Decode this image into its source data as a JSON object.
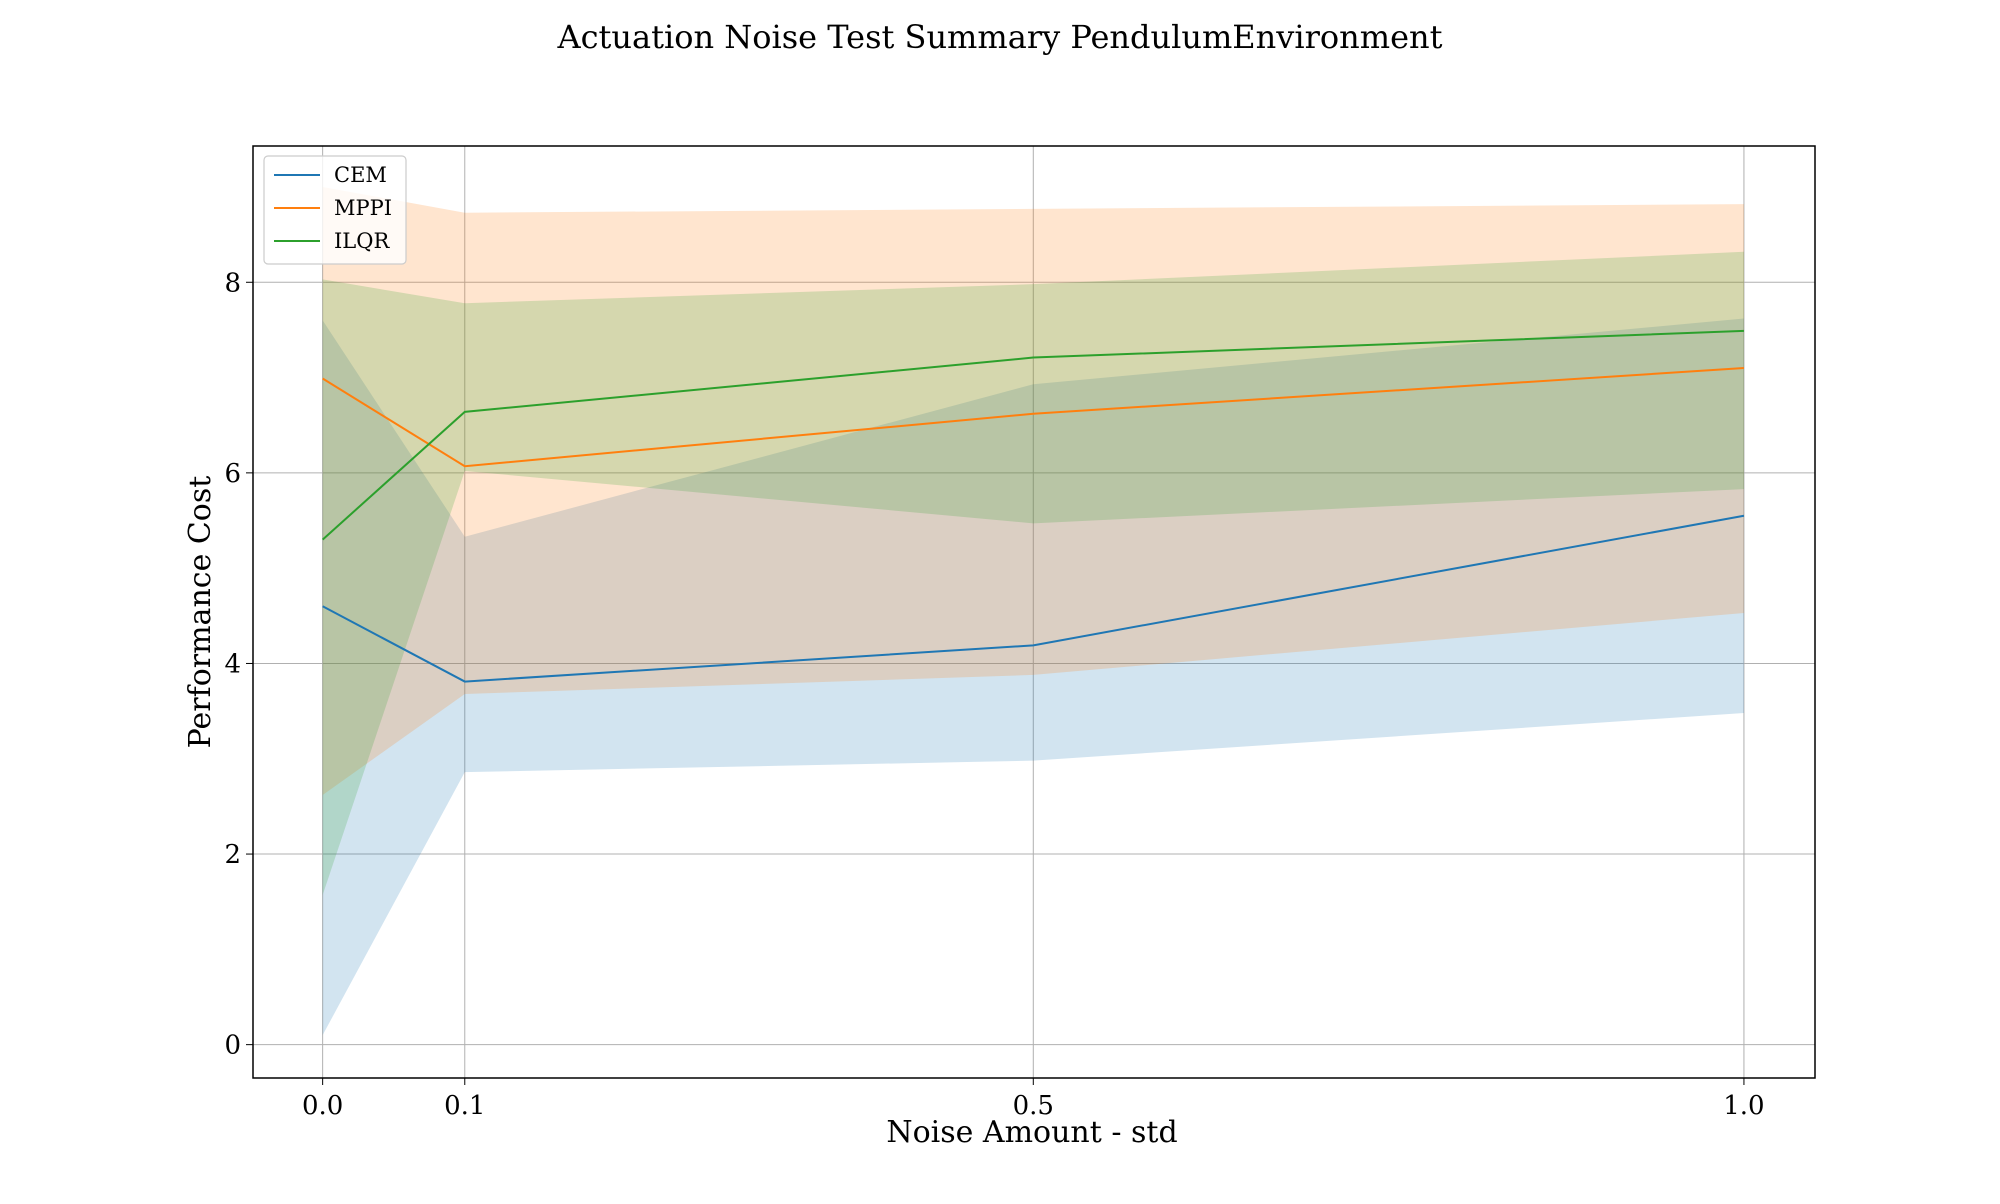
{
  "chart_data": {
    "type": "line",
    "title": "Actuation Noise Test Summary PendulumEnvironment",
    "xlabel": "Noise Amount - std",
    "ylabel": "Performance Cost",
    "x": [
      0.0,
      0.1,
      0.5,
      1.0
    ],
    "x_tick_labels": [
      "0.0",
      "0.1",
      "0.5",
      "1.0"
    ],
    "y_ticks": [
      0,
      2,
      4,
      6,
      8
    ],
    "y_tick_labels": [
      "0",
      "2",
      "4",
      "6",
      "8"
    ],
    "xlim": [
      -0.049,
      1.05
    ],
    "ylim": [
      -0.35,
      9.43
    ],
    "grid": true,
    "legend_position": "top-left",
    "series": [
      {
        "name": "CEM",
        "color": "#1f77b4",
        "values": [
          4.6,
          3.81,
          4.19,
          5.55
        ],
        "lower": [
          0.1,
          2.86,
          2.98,
          3.48
        ],
        "upper": [
          7.6,
          5.33,
          6.93,
          7.62
        ]
      },
      {
        "name": "MPPI",
        "color": "#ff7f0e",
        "values": [
          6.99,
          6.07,
          6.62,
          7.1
        ],
        "lower": [
          2.62,
          3.68,
          3.88,
          4.53
        ],
        "upper": [
          9.0,
          8.73,
          8.77,
          8.82
        ]
      },
      {
        "name": "ILQR",
        "color": "#2ca02c",
        "values": [
          5.3,
          6.64,
          7.21,
          7.49
        ],
        "lower": [
          1.57,
          6.02,
          5.47,
          5.83
        ],
        "upper": [
          8.03,
          7.78,
          7.98,
          8.32
        ]
      }
    ]
  }
}
